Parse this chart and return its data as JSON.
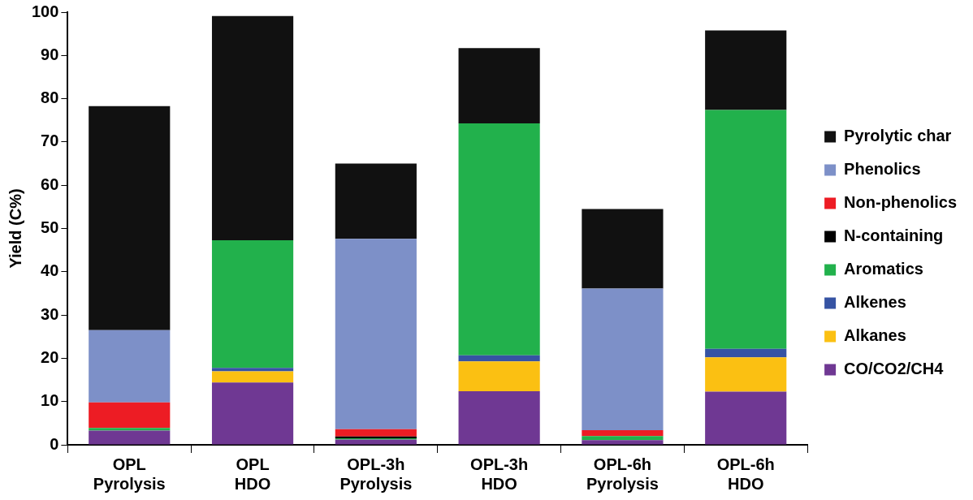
{
  "chart_data": {
    "type": "bar",
    "stacked": true,
    "ylabel": "Yield (C%)",
    "categories": [
      "OPL\nPyrolysis",
      "OPL\nHDO",
      "OPL-3h\nPyrolysis",
      "OPL-3h\nHDO",
      "OPL-6h\nPyrolysis",
      "OPL-6h\nHDO"
    ],
    "ylim": [
      0,
      100
    ],
    "yticks": [
      0,
      10,
      20,
      30,
      40,
      50,
      60,
      70,
      80,
      90,
      100
    ],
    "grid": false,
    "legend": "right",
    "series": [
      {
        "name": "CO/CO2/CH4",
        "color": "#6f3893",
        "values": [
          3.3,
          14.4,
          1.2,
          12.4,
          1.1,
          12.3
        ]
      },
      {
        "name": "Alkanes",
        "color": "#fbc012",
        "values": [
          0,
          2.6,
          0,
          6.9,
          0,
          7.9
        ]
      },
      {
        "name": "Alkenes",
        "color": "#3653a3",
        "values": [
          0,
          0.8,
          0,
          1.4,
          0,
          2.0
        ]
      },
      {
        "name": "Aromatics",
        "color": "#22b14c",
        "values": [
          0.6,
          29.5,
          0.3,
          53.6,
          0.9,
          55.2
        ]
      },
      {
        "name": "N-containing",
        "color": "#000000",
        "values": [
          0,
          0,
          0.4,
          0,
          0,
          0
        ]
      },
      {
        "name": "Non-phenolics",
        "color": "#ed1c24",
        "values": [
          5.9,
          0,
          1.7,
          0,
          1.4,
          0
        ]
      },
      {
        "name": "Phenolics",
        "color": "#7d90c8",
        "values": [
          16.7,
          0,
          44.0,
          0,
          32.7,
          0
        ]
      },
      {
        "name": "Pyrolytic char",
        "color": "#111111",
        "values": [
          51.8,
          51.8,
          17.4,
          17.4,
          18.4,
          18.4
        ]
      }
    ]
  }
}
